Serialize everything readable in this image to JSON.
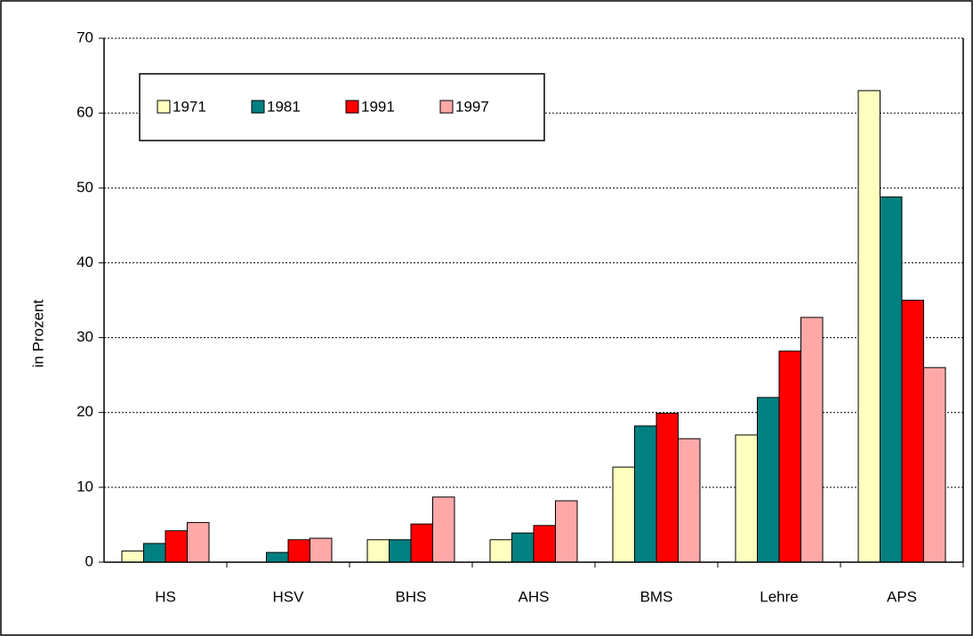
{
  "chart_data": {
    "type": "bar",
    "y_label": "in Prozent",
    "categories": [
      "HS",
      "HSV",
      "BHS",
      "AHS",
      "BMS",
      "Lehre",
      "APS"
    ],
    "series": [
      {
        "name": "1971",
        "color": "#ffffc0",
        "values": [
          1.5,
          null,
          3,
          3,
          12.7,
          17,
          63
        ]
      },
      {
        "name": "1981",
        "color": "#008080",
        "values": [
          2.5,
          1.3,
          3,
          3.9,
          18.2,
          22,
          48.8
        ]
      },
      {
        "name": "1991",
        "color": "#ff0000",
        "values": [
          4.2,
          3,
          5.1,
          4.9,
          19.9,
          28.2,
          35
        ]
      },
      {
        "name": "1997",
        "color": "#ffa8a8",
        "values": [
          5.3,
          3.2,
          8.7,
          8.2,
          16.5,
          32.7,
          26
        ]
      }
    ],
    "ylim": [
      0,
      70
    ],
    "yticks": [
      0,
      10,
      20,
      30,
      40,
      50,
      60,
      70
    ],
    "grid": true,
    "legend": "top-left"
  }
}
